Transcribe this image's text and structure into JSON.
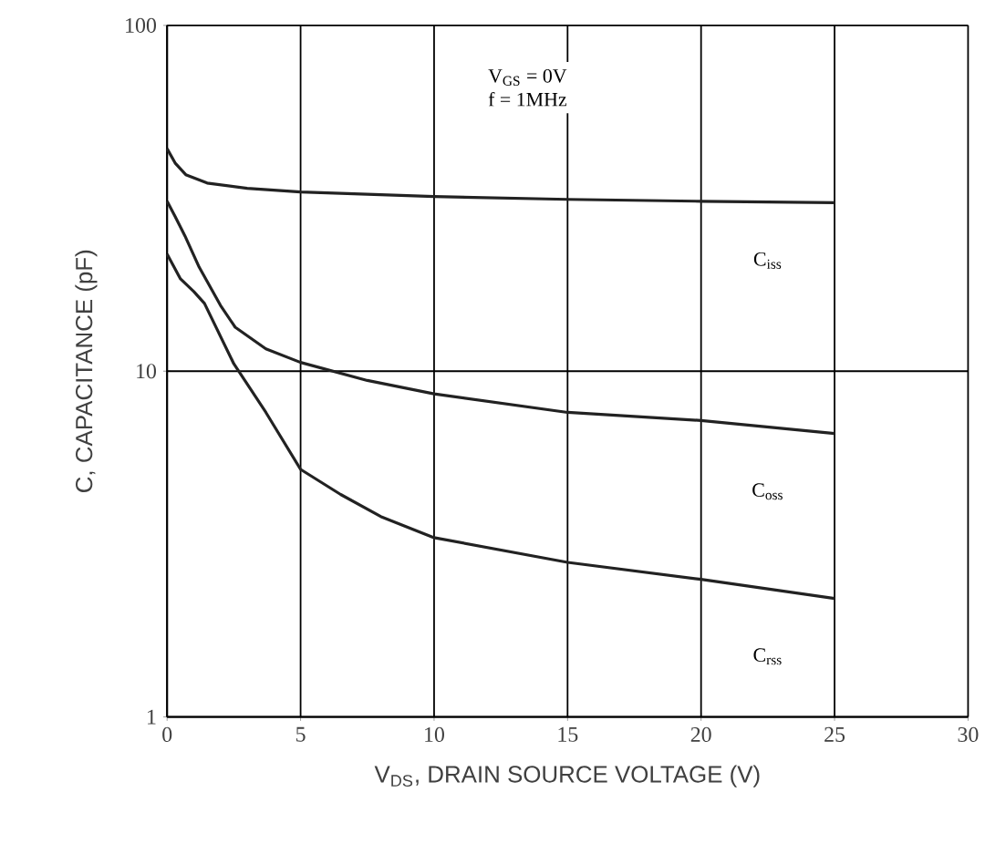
{
  "chart_data": {
    "type": "line",
    "xlabel": "V$_{DS}$, DRAIN SOURCE VOLTAGE (V)",
    "ylabel": "C, CAPACITANCE (pF)",
    "annotations": [
      "V$_{GS}$ = 0V",
      "f = 1MHz"
    ],
    "xlim": [
      0,
      30
    ],
    "xticks": [
      0,
      5,
      10,
      15,
      20,
      25,
      30
    ],
    "ylim": [
      1,
      100
    ],
    "yticks": [
      1,
      10,
      100
    ],
    "log": "y",
    "grid": true,
    "legend": false,
    "marker": "none",
    "line_style": "solid",
    "series": [
      {
        "name": "C$_{iss}$",
        "color": "#222222",
        "x": [
          0,
          0.3,
          0.7,
          1.5,
          3,
          5,
          7.5,
          10,
          15,
          20,
          25
        ],
        "values": [
          44,
          40,
          37,
          35,
          33.8,
          33,
          32.5,
          32,
          31.4,
          31,
          30.7
        ]
      },
      {
        "name": "C$_{oss}$",
        "color": "#222222",
        "x": [
          0,
          0.3,
          0.67,
          1.2,
          2,
          2.55,
          3.7,
          5,
          7.5,
          10,
          15,
          20,
          25
        ],
        "values": [
          31,
          28,
          24.6,
          20,
          15.5,
          13.4,
          11.6,
          10.6,
          9.4,
          8.6,
          7.6,
          7.2,
          6.6
        ]
      },
      {
        "name": "C$_{rss}$",
        "color": "#222222",
        "x": [
          0,
          0.5,
          1,
          1.4,
          2.5,
          3.7,
          5,
          6.5,
          8,
          10,
          15,
          20,
          25
        ],
        "values": [
          21.8,
          18.5,
          17,
          15.7,
          10.5,
          7.6,
          5.2,
          4.4,
          3.8,
          3.3,
          2.8,
          2.5,
          2.2
        ]
      }
    ]
  }
}
